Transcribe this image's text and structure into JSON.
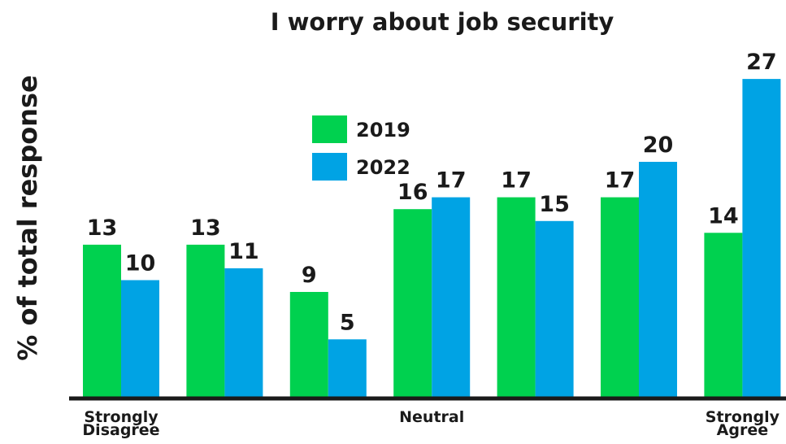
{
  "chart_data": {
    "type": "bar",
    "title": "I worry about job security",
    "ylabel": "% of total response",
    "xlabel": "",
    "categories": [
      "1",
      "2",
      "3",
      "4",
      "5",
      "6",
      "7"
    ],
    "x_tick_labels": [
      {
        "category_index": 0,
        "lines": [
          "Strongly",
          "Disagree"
        ]
      },
      {
        "category_index": 3,
        "lines": [
          "Neutral"
        ]
      },
      {
        "category_index": 6,
        "lines": [
          "Strongly",
          "Agree"
        ]
      }
    ],
    "series": [
      {
        "name": "2019",
        "color": "#00d14f",
        "values": [
          13,
          13,
          9,
          16,
          17,
          17,
          14
        ]
      },
      {
        "name": "2022",
        "color": "#00a3e4",
        "values": [
          10,
          11,
          5,
          17,
          15,
          20,
          27
        ]
      }
    ],
    "ylim": [
      0,
      28
    ],
    "grid": false,
    "legend_position": "top-center",
    "axis_color": "#1a1a1a"
  }
}
